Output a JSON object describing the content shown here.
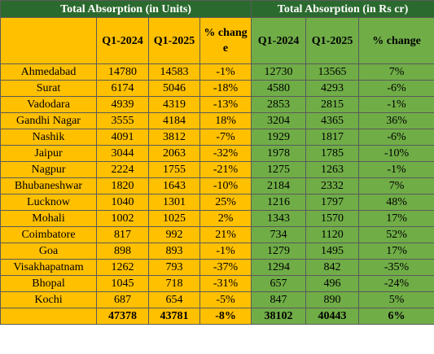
{
  "header": {
    "left_title": "Total Absorption (in Units)",
    "right_title": "Total Absorption (in Rs cr)"
  },
  "columns": [
    "Q1-2024",
    "Q1-2025",
    "% change",
    "Q1-2024",
    "Q1-2025",
    "% change"
  ],
  "rows": [
    [
      "Ahmedabad",
      "14780",
      "14583",
      "-1%",
      "12730",
      "13565",
      "7%"
    ],
    [
      "Surat",
      "6174",
      "5046",
      "-18%",
      "4580",
      "4293",
      "-6%"
    ],
    [
      "Vadodara",
      "4939",
      "4319",
      "-13%",
      "2853",
      "2815",
      "-1%"
    ],
    [
      "Gandhi Nagar",
      "3555",
      "4184",
      "18%",
      "3204",
      "4365",
      "36%"
    ],
    [
      "Nashik",
      "4091",
      "3812",
      "-7%",
      "1929",
      "1817",
      "-6%"
    ],
    [
      "Jaipur",
      "3044",
      "2063",
      "-32%",
      "1978",
      "1785",
      "-10%"
    ],
    [
      "Nagpur",
      "2224",
      "1755",
      "-21%",
      "1275",
      "1263",
      "-1%"
    ],
    [
      "Bhubaneshwar",
      "1820",
      "1643",
      "-10%",
      "2184",
      "2332",
      "7%"
    ],
    [
      "Lucknow",
      "1040",
      "1301",
      "25%",
      "1216",
      "1797",
      "48%"
    ],
    [
      "Mohali",
      "1002",
      "1025",
      "2%",
      "1343",
      "1570",
      "17%"
    ],
    [
      "Coimbatore",
      "817",
      "992",
      "21%",
      "734",
      "1120",
      "52%"
    ],
    [
      "Goa",
      "898",
      "893",
      "-1%",
      "1279",
      "1495",
      "17%"
    ],
    [
      "Visakhapatnam",
      "1262",
      "793",
      "-37%",
      "1294",
      "842",
      "-35%"
    ],
    [
      "Bhopal",
      "1045",
      "718",
      "-31%",
      "657",
      "496",
      "-24%"
    ],
    [
      "Kochi",
      "687",
      "654",
      "-5%",
      "847",
      "890",
      "5%"
    ]
  ],
  "total": [
    "47378",
    "43781",
    "-8%",
    "38102",
    "40443",
    "6%"
  ]
}
